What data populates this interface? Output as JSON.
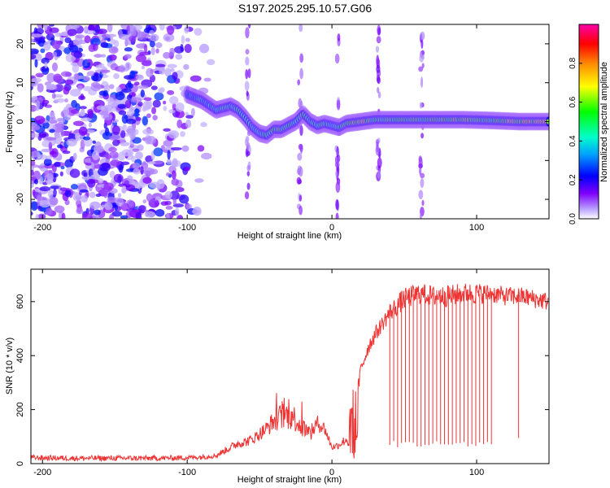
{
  "title": "S197.2025.295.10.57.G06",
  "chart_data": [
    {
      "type": "heatmap",
      "title": "S197.2025.295.10.57.G06",
      "xlabel": "Height of straight line (km)",
      "ylabel": "Frequency (Hz)",
      "xlim": [
        -208,
        150
      ],
      "ylim": [
        -25,
        25
      ],
      "xticks": [
        -200,
        -100,
        0,
        100
      ],
      "yticks": [
        -20,
        -10,
        0,
        10,
        20
      ],
      "colorbar": {
        "label": "Normalized spectral amplitude",
        "range": [
          0,
          1
        ],
        "ticks": [
          0.0,
          0.2,
          0.4,
          0.6,
          0.8
        ],
        "colors": [
          "#ffffff",
          "#7f00ff",
          "#0000ff",
          "#00a0ff",
          "#00ffcc",
          "#00ff00",
          "#ffff00",
          "#ff8800",
          "#ff0000",
          "#ff00aa"
        ]
      },
      "ridge": {
        "x": [
          -100,
          -90,
          -80,
          -70,
          -65,
          -60,
          -55,
          -50,
          -45,
          -40,
          -35,
          -30,
          -25,
          -20,
          -15,
          -10,
          -5,
          0,
          5,
          10,
          20,
          30,
          50,
          70,
          90,
          110,
          130,
          150
        ],
        "y": [
          7,
          5.5,
          3,
          4,
          3,
          1,
          -1.5,
          -3,
          -3.5,
          -2,
          -2,
          -1,
          0,
          2,
          0,
          -1,
          -0.5,
          -1,
          -1.5,
          -0.5,
          0,
          0.5,
          0.5,
          0.5,
          0.5,
          0.3,
          0,
          0
        ],
        "amplitude": [
          0.3,
          0.4,
          0.4,
          0.45,
          0.45,
          0.5,
          0.45,
          0.45,
          0.5,
          0.55,
          0.6,
          0.5,
          0.5,
          0.55,
          0.45,
          0.5,
          0.5,
          0.45,
          0.5,
          0.6,
          0.7,
          0.55,
          0.55,
          0.55,
          0.6,
          0.55,
          0.7,
          0.75
        ]
      }
    },
    {
      "type": "line",
      "xlabel": "Height of straight line (km)",
      "ylabel": "SNR (10 * v/v)",
      "xlim": [
        -208,
        150
      ],
      "ylim": [
        0,
        720
      ],
      "xticks": [
        -200,
        -100,
        0,
        100
      ],
      "yticks": [
        0,
        200,
        400,
        600
      ],
      "series": [
        {
          "name": "SNR",
          "color": "#ee3333",
          "x": [
            -208,
            -180,
            -150,
            -120,
            -100,
            -90,
            -80,
            -75,
            -70,
            -65,
            -60,
            -55,
            -50,
            -45,
            -40,
            -35,
            -30,
            -25,
            -20,
            -15,
            -10,
            -5,
            0,
            5,
            10,
            15,
            17,
            20,
            25,
            30,
            35,
            40,
            50,
            60,
            70,
            80,
            90,
            100,
            110,
            120,
            130,
            140,
            150
          ],
          "y": [
            22,
            20,
            20,
            20,
            22,
            25,
            30,
            45,
            60,
            75,
            80,
            90,
            110,
            130,
            160,
            175,
            180,
            165,
            130,
            110,
            150,
            130,
            60,
            70,
            90,
            40,
            230,
            350,
            430,
            480,
            520,
            560,
            610,
            630,
            620,
            620,
            630,
            630,
            630,
            620,
            620,
            610,
            600
          ],
          "noise": [
            10,
            10,
            10,
            10,
            10,
            10,
            10,
            12,
            15,
            18,
            18,
            20,
            25,
            30,
            40,
            50,
            55,
            50,
            40,
            30,
            30,
            25,
            12,
            15,
            20,
            10,
            30,
            30,
            30,
            30,
            30,
            35,
            40,
            40,
            40,
            40,
            40,
            40,
            35,
            35,
            35,
            35,
            35
          ]
        }
      ]
    }
  ]
}
